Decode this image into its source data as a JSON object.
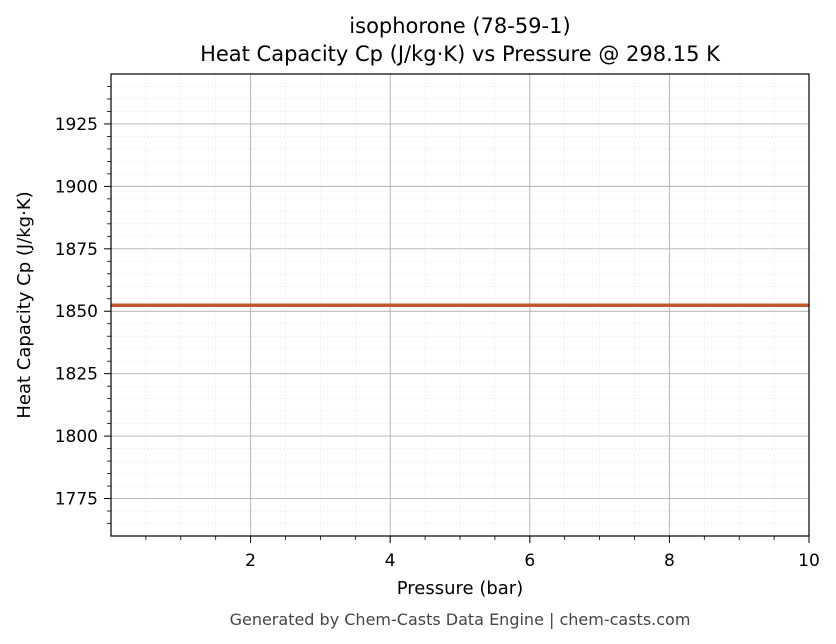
{
  "chart_data": {
    "type": "line",
    "title": "isophorone (78-59-1)",
    "subtitle": "Heat Capacity Cp (J/kg·K) vs Pressure @ 298.15 K",
    "xlabel": "Pressure (bar)",
    "ylabel": "Heat Capacity Cp (J/kg·K)",
    "xlim": [
      0.0,
      10.0
    ],
    "ylim": [
      1760,
      1945
    ],
    "x_ticks": [
      2,
      4,
      6,
      8,
      10
    ],
    "x_tick_labels": [
      "2",
      "4",
      "6",
      "8",
      "10"
    ],
    "y_ticks": [
      1775,
      1800,
      1825,
      1850,
      1875,
      1900,
      1925
    ],
    "y_tick_labels": [
      "1775",
      "1800",
      "1825",
      "1850",
      "1875",
      "1900",
      "1925"
    ],
    "grid": true,
    "series": [
      {
        "color": "#c0582b",
        "x": [
          0.0,
          1.0,
          2.0,
          3.0,
          4.0,
          5.0,
          6.0,
          7.0,
          8.0,
          9.0,
          10.0
        ],
        "y": [
          1852.4,
          1852.4,
          1852.4,
          1852.4,
          1852.4,
          1852.4,
          1852.4,
          1852.4,
          1852.4,
          1852.4,
          1852.4
        ]
      }
    ]
  },
  "footer": "Generated by Chem-Casts Data Engine | chem-casts.com"
}
